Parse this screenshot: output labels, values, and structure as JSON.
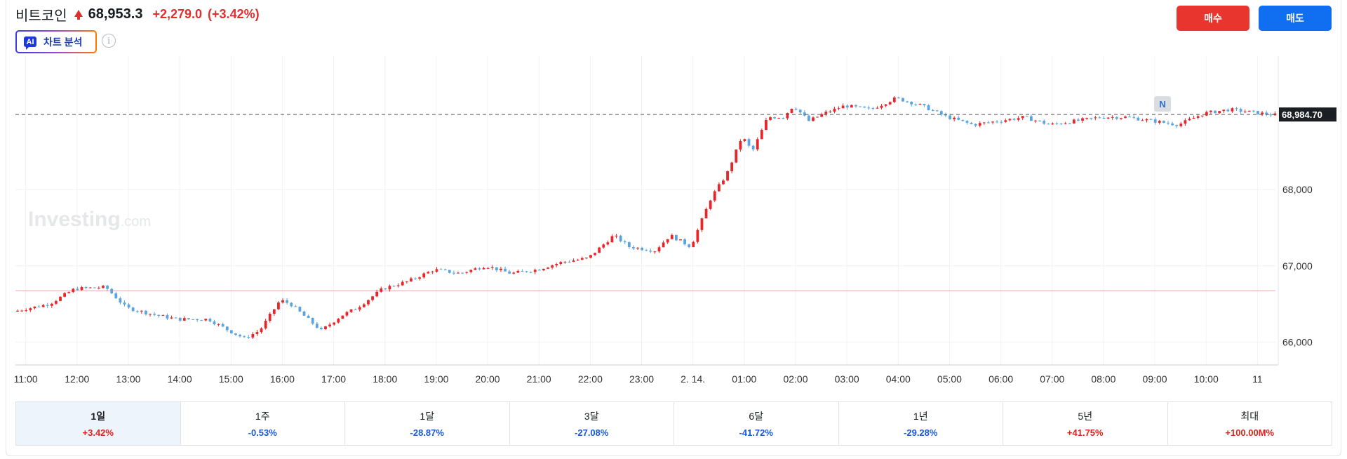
{
  "header": {
    "title": "비트코인",
    "price": "68,953.3",
    "change": "+2,279.0",
    "change_pct": "(+3.42%)",
    "ai_icon": "AI",
    "ai_label": "차트 분석",
    "info_icon": "i",
    "buy_label": "매수",
    "sell_label": "매도"
  },
  "watermark": {
    "brand": "Investing",
    "suffix": ".com"
  },
  "colors": {
    "up": "#e8262a",
    "down": "#5aa4e0",
    "prev_close_line": "#f4a4a4",
    "buy": "#e8362e",
    "sell": "#0f6ff0"
  },
  "current_price_label": "68,984.70",
  "n_marker": "N",
  "chart_data": {
    "type": "candlestick",
    "y_ticks": [
      "66,000",
      "67,000",
      "68,000"
    ],
    "y_tick_values": [
      66000,
      67000,
      68000
    ],
    "ylim": [
      65700,
      69750
    ],
    "x_ticks": [
      "11:00",
      "12:00",
      "13:00",
      "14:00",
      "15:00",
      "16:00",
      "17:00",
      "18:00",
      "19:00",
      "20:00",
      "21:00",
      "22:00",
      "23:00",
      "2. 14.",
      "01:00",
      "02:00",
      "03:00",
      "04:00",
      "05:00",
      "06:00",
      "07:00",
      "08:00",
      "09:00",
      "10:00",
      "11"
    ],
    "x_range_hours": [
      10.8,
      35.35
    ],
    "current_price": 68984.7,
    "prev_close": 66674.3,
    "close_path_hours": [
      10.8,
      11.5,
      12.0,
      12.6,
      13.0,
      13.6,
      14.0,
      14.6,
      15.0,
      15.3,
      15.6,
      16.0,
      16.2,
      16.8,
      17.2,
      17.5,
      18.0,
      18.5,
      19.0,
      19.5,
      20.0,
      20.5,
      21.0,
      21.5,
      22.0,
      22.5,
      22.8,
      23.3,
      23.6,
      24.0,
      24.4,
      24.7,
      25.0,
      25.2,
      25.5,
      25.8,
      26.0,
      26.3,
      26.6,
      27.0,
      27.5,
      28.0,
      28.5,
      29.0,
      29.5,
      30.0,
      30.5,
      31.0,
      31.5,
      32.0,
      32.5,
      33.0,
      33.5,
      34.0,
      34.5,
      35.35
    ],
    "close_path_values": [
      66400,
      66500,
      66700,
      66720,
      66450,
      66350,
      66300,
      66300,
      66150,
      66050,
      66150,
      66550,
      66500,
      66150,
      66350,
      66450,
      66700,
      66800,
      66950,
      66900,
      67000,
      66900,
      66950,
      67050,
      67100,
      67400,
      67250,
      67200,
      67400,
      67250,
      67900,
      68200,
      68700,
      68500,
      68950,
      68950,
      69100,
      68900,
      69000,
      69100,
      69050,
      69200,
      69100,
      68950,
      68850,
      68900,
      68950,
      68850,
      68900,
      68950,
      68950,
      68900,
      68850,
      69000,
      69050,
      68980
    ],
    "candle_minutes": 5
  },
  "periods": [
    {
      "label": "1일",
      "value": "+3.42%",
      "dir": "up",
      "active": true
    },
    {
      "label": "1주",
      "value": "-0.53%",
      "dir": "down"
    },
    {
      "label": "1달",
      "value": "-28.87%",
      "dir": "down"
    },
    {
      "label": "3달",
      "value": "-27.08%",
      "dir": "down"
    },
    {
      "label": "6달",
      "value": "-41.72%",
      "dir": "down"
    },
    {
      "label": "1년",
      "value": "-29.28%",
      "dir": "down"
    },
    {
      "label": "5년",
      "value": "+41.75%",
      "dir": "up"
    },
    {
      "label": "최대",
      "value": "+100.00M%",
      "dir": "up"
    }
  ]
}
